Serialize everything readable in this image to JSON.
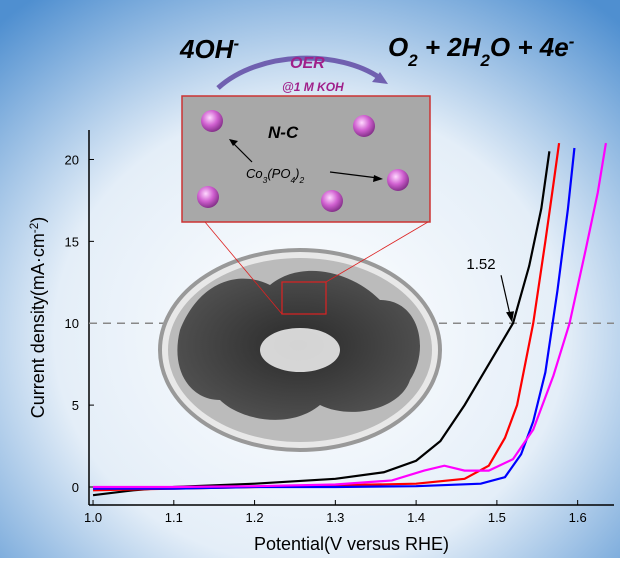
{
  "chart_data": {
    "type": "line",
    "reaction": {
      "reactant": [
        {
          "text": "4OH"
        },
        {
          "text": "-",
          "sup": true
        }
      ],
      "catalyst_label": "OER",
      "condition": "@1 M KOH",
      "product": [
        {
          "text": "O"
        },
        {
          "text": "2",
          "sub": true
        },
        {
          "text": " + 2H"
        },
        {
          "text": "2",
          "sub": true
        },
        {
          "text": "O + 4e"
        },
        {
          "text": "-",
          "sup": true
        }
      ]
    },
    "inset_labels": {
      "matrix": "N-C",
      "particle": [
        {
          "text": "Co"
        },
        {
          "text": "3",
          "sub": true
        },
        {
          "text": "(PO"
        },
        {
          "text": "4",
          "sub": true
        },
        {
          "text": ")"
        },
        {
          "text": "2",
          "sub": true
        }
      ]
    },
    "x_label": "Potential(V versus RHE)",
    "y_label": [
      {
        "text": "Current density(mA·cm"
      },
      {
        "text": "-2",
        "sup": true
      },
      {
        "text": ")"
      }
    ],
    "xlim": [
      0.995,
      1.645
    ],
    "ylim": [
      -1.1,
      21.8
    ],
    "xticks": [
      {
        "value": 1,
        "label": "1.0"
      },
      1.1,
      1.2,
      1.3,
      1.4,
      1.5,
      1.6
    ],
    "yticks": [
      0,
      5,
      10,
      15,
      20
    ],
    "reference_line": 10,
    "annotation": {
      "text": "1.52",
      "x": 1.52,
      "y": 10
    },
    "series": [
      {
        "color": "#000000",
        "x": [
          1.0,
          1.05,
          1.1,
          1.2,
          1.3,
          1.36,
          1.4,
          1.43,
          1.46,
          1.49,
          1.52,
          1.54,
          1.555,
          1.565
        ],
        "values": [
          -0.5,
          -0.2,
          0,
          0.2,
          0.5,
          0.9,
          1.6,
          2.8,
          5,
          7.5,
          10,
          13.5,
          17,
          20.5
        ]
      },
      {
        "color": "#ff0000",
        "x": [
          1.0,
          1.1,
          1.2,
          1.3,
          1.4,
          1.46,
          1.49,
          1.51,
          1.525,
          1.545,
          1.56,
          1.57,
          1.577
        ],
        "values": [
          -0.2,
          -0.1,
          0,
          0.1,
          0.2,
          0.5,
          1.3,
          3,
          5,
          10,
          15,
          18.5,
          21
        ]
      },
      {
        "color": "#0000ff",
        "x": [
          1.0,
          1.1,
          1.2,
          1.3,
          1.4,
          1.48,
          1.51,
          1.53,
          1.545,
          1.56,
          1.575,
          1.588,
          1.596
        ],
        "values": [
          -0.1,
          -0.1,
          0,
          0,
          0.05,
          0.2,
          0.6,
          2,
          4,
          7,
          12,
          17,
          20.7
        ]
      },
      {
        "color": "#ff00ff",
        "x": [
          1.0,
          1.1,
          1.2,
          1.3,
          1.37,
          1.41,
          1.435,
          1.46,
          1.49,
          1.52,
          1.545,
          1.57,
          1.59,
          1.61,
          1.625,
          1.635
        ],
        "values": [
          0,
          0,
          0.05,
          0.15,
          0.4,
          1.0,
          1.3,
          1.0,
          1.0,
          1.7,
          3.5,
          6.8,
          10,
          14.5,
          18,
          21
        ]
      }
    ]
  }
}
